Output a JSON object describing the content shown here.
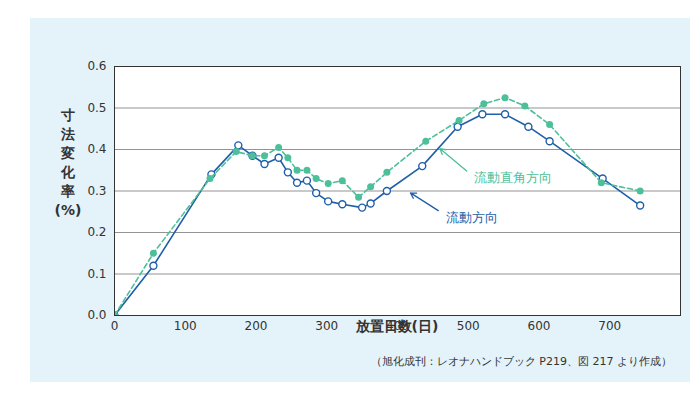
{
  "chart_data": {
    "type": "line",
    "y_label": "寸法変化率(%)",
    "x_label": "放置日数(日)",
    "caption": "（旭化成刊：レオナハンドブック P219、図 217 より作成）",
    "xlim": [
      0,
      800
    ],
    "xticks": [
      0,
      100,
      200,
      300,
      400,
      500,
      600,
      700
    ],
    "ylim": [
      0,
      0.6
    ],
    "yticks": [
      {
        "value": 0,
        "label": "0.0"
      },
      0.1,
      0.2,
      0.3,
      0.4,
      0.5,
      0.6
    ],
    "grid": true,
    "series": [
      {
        "name": "流動方向",
        "color": "#1f5fa8",
        "line_style": "solid",
        "marker": "open circle",
        "x": [
          0,
          55,
          137,
          175,
          195,
          212,
          232,
          245,
          258,
          272,
          285,
          302,
          322,
          350,
          362,
          385,
          435,
          485,
          520,
          552,
          585,
          615,
          690,
          743
        ],
        "values": [
          0,
          0.12,
          0.34,
          0.41,
          0.385,
          0.365,
          0.38,
          0.345,
          0.32,
          0.325,
          0.295,
          0.275,
          0.268,
          0.26,
          0.27,
          0.3,
          0.36,
          0.455,
          0.485,
          0.485,
          0.455,
          0.42,
          0.33,
          0.265
        ]
      },
      {
        "name": "流動直角方向",
        "color": "#4dbf9a",
        "line_style": "dashed",
        "marker": "filled circle",
        "x": [
          0,
          55,
          135,
          172,
          195,
          212,
          232,
          245,
          258,
          272,
          285,
          302,
          322,
          345,
          362,
          385,
          440,
          487,
          522,
          552,
          580,
          615,
          688,
          743
        ],
        "values": [
          0,
          0.15,
          0.33,
          0.395,
          0.385,
          0.385,
          0.405,
          0.38,
          0.35,
          0.35,
          0.33,
          0.318,
          0.325,
          0.285,
          0.31,
          0.345,
          0.42,
          0.47,
          0.51,
          0.525,
          0.505,
          0.46,
          0.32,
          0.3
        ]
      }
    ],
    "annotations": [
      {
        "text": "流動直角方向",
        "series": "流動直角方向",
        "x": 500,
        "y": 0.345,
        "arrow_to": [
          458,
          0.405
        ]
      },
      {
        "text": "流動方向",
        "series": "流動方向",
        "x": 460,
        "y": 0.25,
        "arrow_to": [
          416,
          0.298
        ]
      }
    ]
  }
}
